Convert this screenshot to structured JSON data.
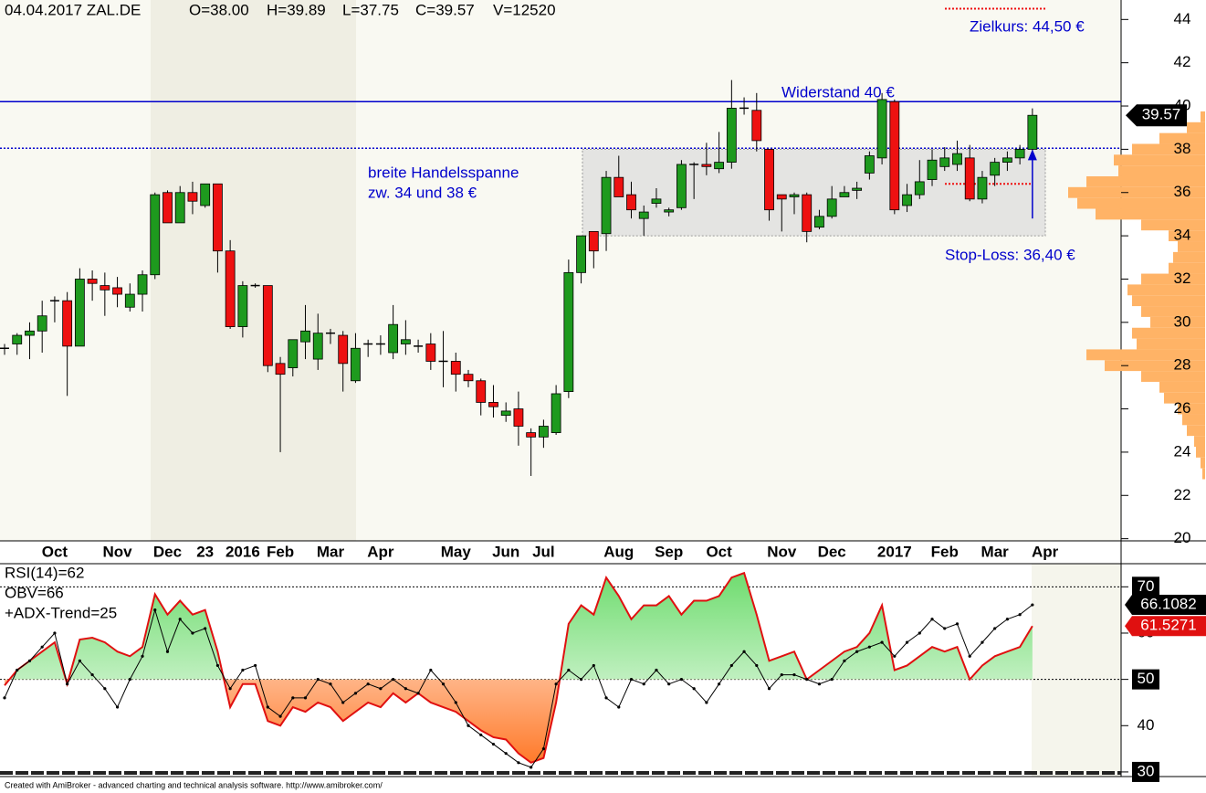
{
  "chart_data": {
    "type": "candlestick",
    "header": [
      "04.04.2017 ZAL.DE",
      "O=38.00",
      "H=39.89",
      "L=37.75",
      "C=39.57",
      "V=12520"
    ],
    "categories": [
      null,
      null,
      null,
      null,
      "Oct",
      null,
      null,
      null,
      null,
      "Nov",
      null,
      null,
      null,
      "Dec",
      null,
      null,
      "23",
      null,
      null,
      "2016",
      null,
      null,
      "Feb",
      null,
      null,
      null,
      "Mar",
      null,
      null,
      null,
      "Apr",
      null,
      null,
      null,
      null,
      null,
      "May",
      null,
      null,
      null,
      "Jun",
      null,
      null,
      "Jul",
      null,
      null,
      null,
      null,
      null,
      "Aug",
      null,
      null,
      null,
      "Sep",
      null,
      null,
      null,
      "Oct",
      null,
      null,
      null,
      null,
      "Nov",
      null,
      null,
      null,
      "Dec",
      null,
      null,
      null,
      null,
      "2017",
      null,
      null,
      null,
      "Feb",
      null,
      null,
      null,
      "Mar",
      null,
      null,
      null,
      "Apr"
    ],
    "ohlc": [
      [
        28.8,
        29,
        28.5,
        28.8
      ],
      [
        29,
        29.5,
        28.5,
        29.4
      ],
      [
        29.4,
        30,
        28.3,
        29.6
      ],
      [
        29.6,
        31,
        28.6,
        30.3
      ],
      [
        31,
        31.2,
        30,
        31
      ],
      [
        31,
        31.4,
        26.6,
        28.9
      ],
      [
        28.9,
        32.5,
        28.9,
        32
      ],
      [
        32,
        32.4,
        31,
        31.8
      ],
      [
        31.7,
        32.3,
        30.3,
        31.5
      ],
      [
        31.6,
        32.1,
        30.7,
        31.3
      ],
      [
        30.7,
        31.8,
        30.5,
        31.3
      ],
      [
        31.3,
        32.4,
        30.5,
        32.2
      ],
      [
        32.2,
        36,
        32,
        35.9
      ],
      [
        36,
        36.1,
        34.6,
        34.6
      ],
      [
        34.6,
        36.3,
        34.6,
        36
      ],
      [
        36,
        36.5,
        35,
        35.6
      ],
      [
        35.4,
        36.4,
        35.3,
        36.4
      ],
      [
        36.4,
        36.4,
        32.3,
        33.3
      ],
      [
        33.3,
        33.8,
        29.7,
        29.8
      ],
      [
        29.8,
        31.9,
        29.3,
        31.7
      ],
      [
        31.7,
        31.8,
        31.6,
        31.7
      ],
      [
        31.7,
        31.7,
        27.7,
        28
      ],
      [
        28.1,
        28.4,
        24,
        27.6
      ],
      [
        27.9,
        29.2,
        27.5,
        29.2
      ],
      [
        29.1,
        30.8,
        28.3,
        29.6
      ],
      [
        28.3,
        30.4,
        27.8,
        29.5
      ],
      [
        29.5,
        29.7,
        29,
        29.5
      ],
      [
        29.4,
        29.6,
        26.8,
        28.1
      ],
      [
        27.3,
        29.5,
        27.2,
        28.8
      ],
      [
        29,
        29.2,
        28.4,
        29
      ],
      [
        29,
        29.4,
        28.5,
        29
      ],
      [
        28.6,
        30.8,
        28.3,
        29.9
      ],
      [
        29,
        30.1,
        28.5,
        29.2
      ],
      [
        28.9,
        29.2,
        28.6,
        28.9
      ],
      [
        29,
        29.5,
        27.8,
        28.2
      ],
      [
        28.2,
        29.6,
        27,
        28.2
      ],
      [
        28.2,
        28.6,
        26.8,
        27.6
      ],
      [
        27.6,
        27.8,
        27,
        27.3
      ],
      [
        27.3,
        27.4,
        25.7,
        26.3
      ],
      [
        26.3,
        27.1,
        25.6,
        26.1
      ],
      [
        25.7,
        26.3,
        25.4,
        25.9
      ],
      [
        26,
        26.8,
        24.3,
        25.2
      ],
      [
        24.9,
        25.1,
        22.9,
        24.7
      ],
      [
        24.7,
        25.5,
        24.2,
        25.2
      ],
      [
        24.9,
        27.1,
        24.8,
        26.7
      ],
      [
        26.8,
        32.9,
        26.5,
        32.3
      ],
      [
        32.3,
        34,
        31.8,
        34
      ],
      [
        34.2,
        34.2,
        32.5,
        33.3
      ],
      [
        34.1,
        37,
        33.3,
        36.7
      ],
      [
        36.7,
        37.7,
        35.8,
        35.8
      ],
      [
        35.9,
        36.5,
        34.8,
        35.2
      ],
      [
        34.8,
        35.4,
        34,
        35.1
      ],
      [
        35.5,
        36.2,
        35.3,
        35.7
      ],
      [
        35.1,
        35.3,
        34.9,
        35.2
      ],
      [
        35.3,
        37.5,
        35.2,
        37.3
      ],
      [
        37.3,
        37.4,
        35.7,
        37.3
      ],
      [
        37.3,
        38.3,
        36.8,
        37.2
      ],
      [
        37.1,
        38.8,
        36.9,
        37.4
      ],
      [
        37.4,
        41.2,
        37.1,
        39.9
      ],
      [
        39.9,
        40.4,
        39.6,
        39.9
      ],
      [
        39.8,
        40.6,
        37.9,
        38.4
      ],
      [
        38,
        38,
        34.7,
        35.2
      ],
      [
        35.9,
        35.9,
        34.2,
        35.7
      ],
      [
        35.8,
        36,
        35,
        35.9
      ],
      [
        35.9,
        36,
        33.7,
        34.2
      ],
      [
        34.4,
        35.2,
        34.3,
        34.9
      ],
      [
        34.9,
        36.3,
        34.8,
        35.7
      ],
      [
        35.8,
        36.3,
        35.8,
        36
      ],
      [
        36.1,
        36.5,
        35.7,
        36.2
      ],
      [
        36.9,
        37.9,
        36.6,
        37.7
      ],
      [
        37.6,
        40.6,
        37.3,
        40.3
      ],
      [
        40.2,
        40.3,
        35,
        35.2
      ],
      [
        35.4,
        36.4,
        35.1,
        35.9
      ],
      [
        35.9,
        37.5,
        35.7,
        36.5
      ],
      [
        36.6,
        38,
        36.3,
        37.5
      ],
      [
        37.2,
        38.1,
        37,
        37.6
      ],
      [
        37.3,
        38.4,
        37,
        37.8
      ],
      [
        37.6,
        38.2,
        35.6,
        35.7
      ],
      [
        35.7,
        37,
        35.5,
        36.7
      ],
      [
        36.8,
        37.6,
        36.3,
        37.4
      ],
      [
        37.4,
        37.9,
        37,
        37.6
      ],
      [
        37.6,
        38.2,
        37.3,
        38
      ],
      [
        38,
        39.89,
        37.75,
        39.57
      ],
      null
    ],
    "up_color": "#1e9a1e",
    "down_color": "#ee1111",
    "ylim": [
      19.9,
      44.9
    ],
    "yticks": [
      20,
      22,
      24,
      26,
      28,
      30,
      32,
      34,
      36,
      38,
      40,
      42,
      44
    ],
    "resistance": {
      "value": 40.2,
      "label": "Widerstand 40 €",
      "color": "#0000cc"
    },
    "support_line": {
      "value": 38.05,
      "color": "#0000cc"
    },
    "range_box": {
      "low": 34,
      "high": 38,
      "label": [
        "breite Handelsspanne",
        "zw. 34 und 38 €"
      ]
    },
    "target": {
      "value": 44.5,
      "label": "Zielkurs: 44,50 €",
      "color": "#ee1111"
    },
    "stop_loss": {
      "value": 36.4,
      "label": "Stop-Loss: 36,40 €",
      "color": "#ee1111"
    },
    "arrow": {
      "from": 34.8,
      "to": 38,
      "color": "#0000cc"
    },
    "volume_profile": {
      "prices": [
        23,
        23.5,
        24,
        24.5,
        25,
        25.5,
        26,
        26.5,
        27,
        27.5,
        28,
        28.5,
        29,
        29.5,
        30,
        30.5,
        31,
        31.5,
        32,
        32.5,
        33,
        33.5,
        34,
        34.5,
        35,
        35.5,
        36,
        36.5,
        37,
        37.5,
        38,
        38.5,
        39,
        39.5
      ],
      "values": [
        3,
        5,
        10,
        12,
        20,
        25,
        30,
        45,
        50,
        70,
        110,
        130,
        75,
        80,
        60,
        70,
        80,
        85,
        70,
        40,
        35,
        30,
        40,
        70,
        120,
        140,
        150,
        130,
        95,
        100,
        80,
        50,
        20,
        5
      ],
      "color": "#ffb366"
    },
    "indicator": {
      "labels": [
        "RSI(14)=62",
        "OBV=66",
        "+ADX-Trend=25"
      ],
      "ylim": [
        29,
        75
      ],
      "yticks": [
        30,
        40,
        50,
        60,
        70
      ],
      "ref_lines": [
        70,
        50
      ],
      "series": [
        {
          "name": "RSI",
          "color": "#e01010",
          "values": [
            48.7,
            52,
            54,
            56,
            58,
            49,
            58.6,
            59,
            58,
            56,
            55,
            57,
            68.4,
            64,
            67,
            64,
            65,
            56,
            44,
            49,
            49,
            41,
            40,
            44,
            43,
            45,
            44,
            41,
            43,
            45,
            44,
            47,
            45,
            47,
            45,
            44,
            43,
            41,
            39,
            37.5,
            37,
            34,
            32,
            33,
            45,
            62,
            66,
            64,
            72,
            68,
            63,
            66,
            66,
            68,
            64,
            67,
            67,
            68,
            72,
            73,
            64,
            54,
            55,
            56,
            50,
            52,
            54,
            56,
            57,
            60,
            66,
            52,
            53,
            55,
            57,
            56,
            57,
            50,
            53,
            55,
            56,
            57,
            61.5271,
            null
          ]
        },
        {
          "name": "OBV",
          "color": "#000000",
          "values": [
            46,
            52,
            54,
            57,
            60,
            49,
            54,
            51,
            48,
            44,
            50,
            55,
            65,
            56,
            63,
            60,
            61,
            53,
            48,
            52,
            53,
            44,
            42,
            46,
            46,
            50,
            49,
            45,
            47,
            49,
            48,
            50,
            48,
            47,
            52,
            49,
            45,
            40,
            38,
            36,
            34,
            32,
            31,
            35,
            49,
            52,
            50,
            53,
            46,
            44,
            50,
            49,
            52,
            49,
            50,
            48,
            45,
            49,
            53,
            56,
            53,
            48,
            51,
            51,
            50,
            49,
            50,
            54,
            56,
            57,
            58,
            55,
            58,
            60,
            63,
            61,
            62,
            55,
            58,
            61,
            63,
            64,
            66.1082,
            null
          ]
        }
      ]
    },
    "footer": "Created with AmiBroker - advanced charting and technical analysis software. http://www.amibroker.com/"
  }
}
